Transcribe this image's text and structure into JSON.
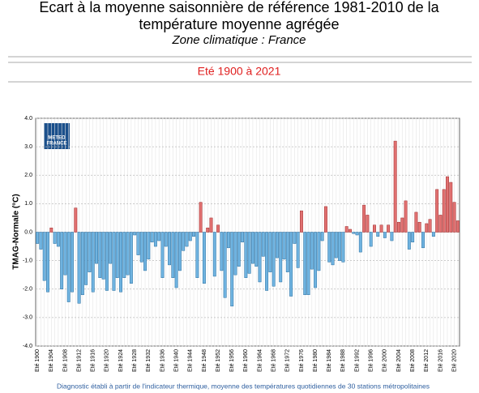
{
  "chart_data": {
    "type": "bar",
    "title": [
      "Ecart à la moyenne saisonnière  de référence 1981-2010  de la",
      "température moyenne  agrégée"
    ],
    "zone": "Zone climatique : France",
    "subtitle": "Eté 1900 à 2021",
    "ylabel": "TMAG-Normale (°C)",
    "logo": [
      "METEO",
      "FRANCE"
    ],
    "footnote": "Diagnostic établi à partir de l'indicateur thermique, moyenne des températures quotidiennes de 30 stations métropolitaines",
    "positive_color": "#e07070",
    "negative_color": "#6fb3e0",
    "ylim": [
      -4,
      4
    ],
    "yticks": [
      {
        "value": 4,
        "label": "4.0"
      },
      {
        "value": 3,
        "label": "3.0"
      },
      {
        "value": 2,
        "label": "2.0"
      },
      {
        "value": 1,
        "label": "1.0"
      },
      {
        "value": 0,
        "label": "0.0"
      },
      {
        "value": -1,
        "label": "-1.0"
      },
      {
        "value": -2,
        "label": "-2.0"
      },
      {
        "value": -3,
        "label": "-3.0"
      },
      {
        "value": -4,
        "label": "-4.0"
      }
    ],
    "grid": true,
    "categories": [
      "Eté 1900",
      null,
      null,
      null,
      "Eté 1904",
      null,
      null,
      null,
      "Eté 1908",
      null,
      null,
      null,
      "Eté 1912",
      null,
      null,
      null,
      "Eté 1916",
      null,
      null,
      null,
      "Eté 1920",
      null,
      null,
      null,
      "Eté 1924",
      null,
      null,
      null,
      "Eté 1928",
      null,
      null,
      null,
      "Eté 1932",
      null,
      null,
      null,
      "Eté 1936",
      null,
      null,
      null,
      "Eté 1940",
      null,
      null,
      null,
      "Eté 1944",
      null,
      null,
      null,
      "Eté 1948",
      null,
      null,
      null,
      "Eté 1952",
      null,
      null,
      null,
      "Eté 1956",
      null,
      null,
      null,
      "Eté 1960",
      null,
      null,
      null,
      "Eté 1964",
      null,
      null,
      null,
      "Eté 1968",
      null,
      null,
      null,
      "Eté 1972",
      null,
      null,
      null,
      "Eté 1976",
      null,
      null,
      null,
      "Eté 1980",
      null,
      null,
      null,
      "Eté 1984",
      null,
      null,
      null,
      "Eté 1988",
      null,
      null,
      null,
      "Eté 1992",
      null,
      null,
      null,
      "Eté 1996",
      null,
      null,
      null,
      "Eté 2000",
      null,
      null,
      null,
      "Eté 2004",
      null,
      null,
      null,
      "Eté 2008",
      null,
      null,
      null,
      "Eté 2012",
      null,
      null,
      null,
      "Eté 2016",
      null,
      null,
      null,
      "Eté 2020",
      null
    ],
    "values": [
      -0.4,
      -0.6,
      -1.7,
      -2.1,
      0.15,
      -0.4,
      -0.5,
      -2.0,
      -1.5,
      -2.45,
      -2.1,
      0.85,
      -2.5,
      -2.2,
      -1.85,
      -1.4,
      -2.1,
      -1.1,
      -1.6,
      -1.65,
      -2.05,
      -1.1,
      -2.05,
      -1.6,
      -2.1,
      -1.6,
      -1.5,
      -1.8,
      -0.1,
      -0.8,
      -1.05,
      -1.35,
      -0.95,
      -0.35,
      -0.5,
      -0.3,
      -1.6,
      -0.5,
      -1.15,
      -1.6,
      -1.95,
      -1.35,
      -0.65,
      -0.5,
      -0.3,
      -0.15,
      -1.6,
      1.05,
      -1.8,
      0.15,
      0.5,
      -1.55,
      0.25,
      -1.35,
      -2.3,
      -0.55,
      -2.6,
      -1.5,
      -1.2,
      -0.35,
      -1.6,
      -1.45,
      -1.1,
      -1.2,
      -1.75,
      -0.85,
      -2.05,
      -1.4,
      -1.9,
      -0.9,
      -1.75,
      -0.95,
      -1.4,
      -2.25,
      -0.4,
      -1.25,
      0.75,
      -2.2,
      -2.2,
      -1.3,
      -1.95,
      -1.35,
      -0.3,
      0.9,
      -1.05,
      -1.15,
      -0.9,
      -1.0,
      -1.05,
      0.2,
      0.1,
      -0.05,
      -0.1,
      -0.7,
      0.95,
      0.6,
      -0.5,
      0.25,
      -0.15,
      0.25,
      -0.2,
      0.25,
      -0.3,
      3.2,
      0.35,
      0.5,
      1.1,
      -0.6,
      -0.35,
      0.7,
      0.35,
      -0.55,
      0.3,
      0.45,
      -0.15,
      1.5,
      0.6,
      1.5,
      1.95,
      1.75,
      1.05,
      0.4
    ]
  }
}
